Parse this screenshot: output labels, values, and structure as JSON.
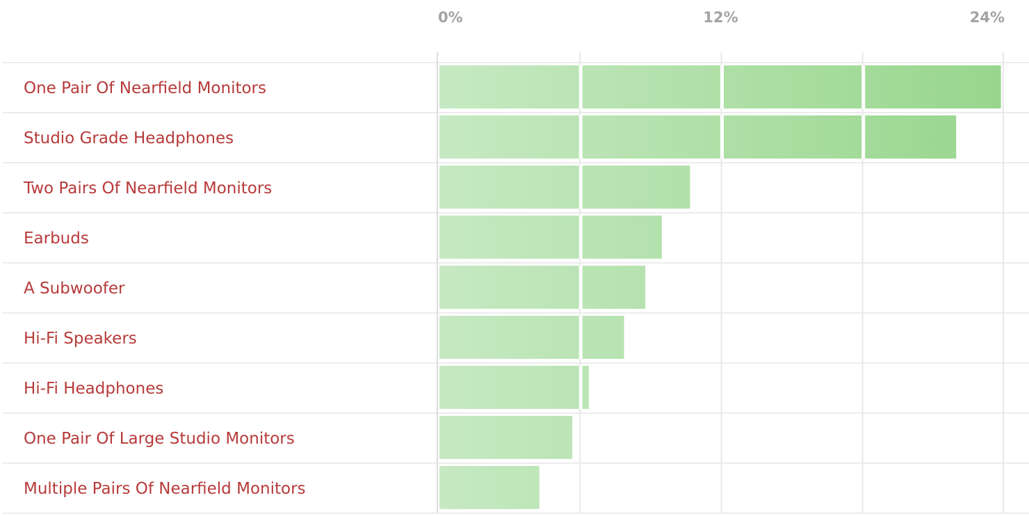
{
  "chart_data": {
    "type": "bar",
    "orientation": "horizontal",
    "categories": [
      "One Pair Of Nearfield Monitors",
      "Studio Grade Headphones",
      "Two Pairs Of Nearfield Monitors",
      "Earbuds",
      "A Subwoofer",
      "Hi-Fi Speakers",
      "Hi-Fi Headphones",
      "One Pair Of Large Studio Monitors",
      "Multiple Pairs Of Nearfield Monitors"
    ],
    "values": [
      23.9,
      22.0,
      10.7,
      9.5,
      8.8,
      7.9,
      6.4,
      5.7,
      4.3
    ],
    "unit": "%",
    "xlim": [
      0,
      24
    ],
    "ticks": [
      0,
      12,
      24
    ],
    "tick_labels": [
      "0%",
      "12%",
      "24%"
    ],
    "segment_step": 6,
    "grid": true,
    "legend": "none",
    "colors": {
      "bar_light": "#c6e8c2",
      "bar_dark": "#98d78d",
      "label": "#b73a3a",
      "tick": "#a3a3a3"
    }
  }
}
